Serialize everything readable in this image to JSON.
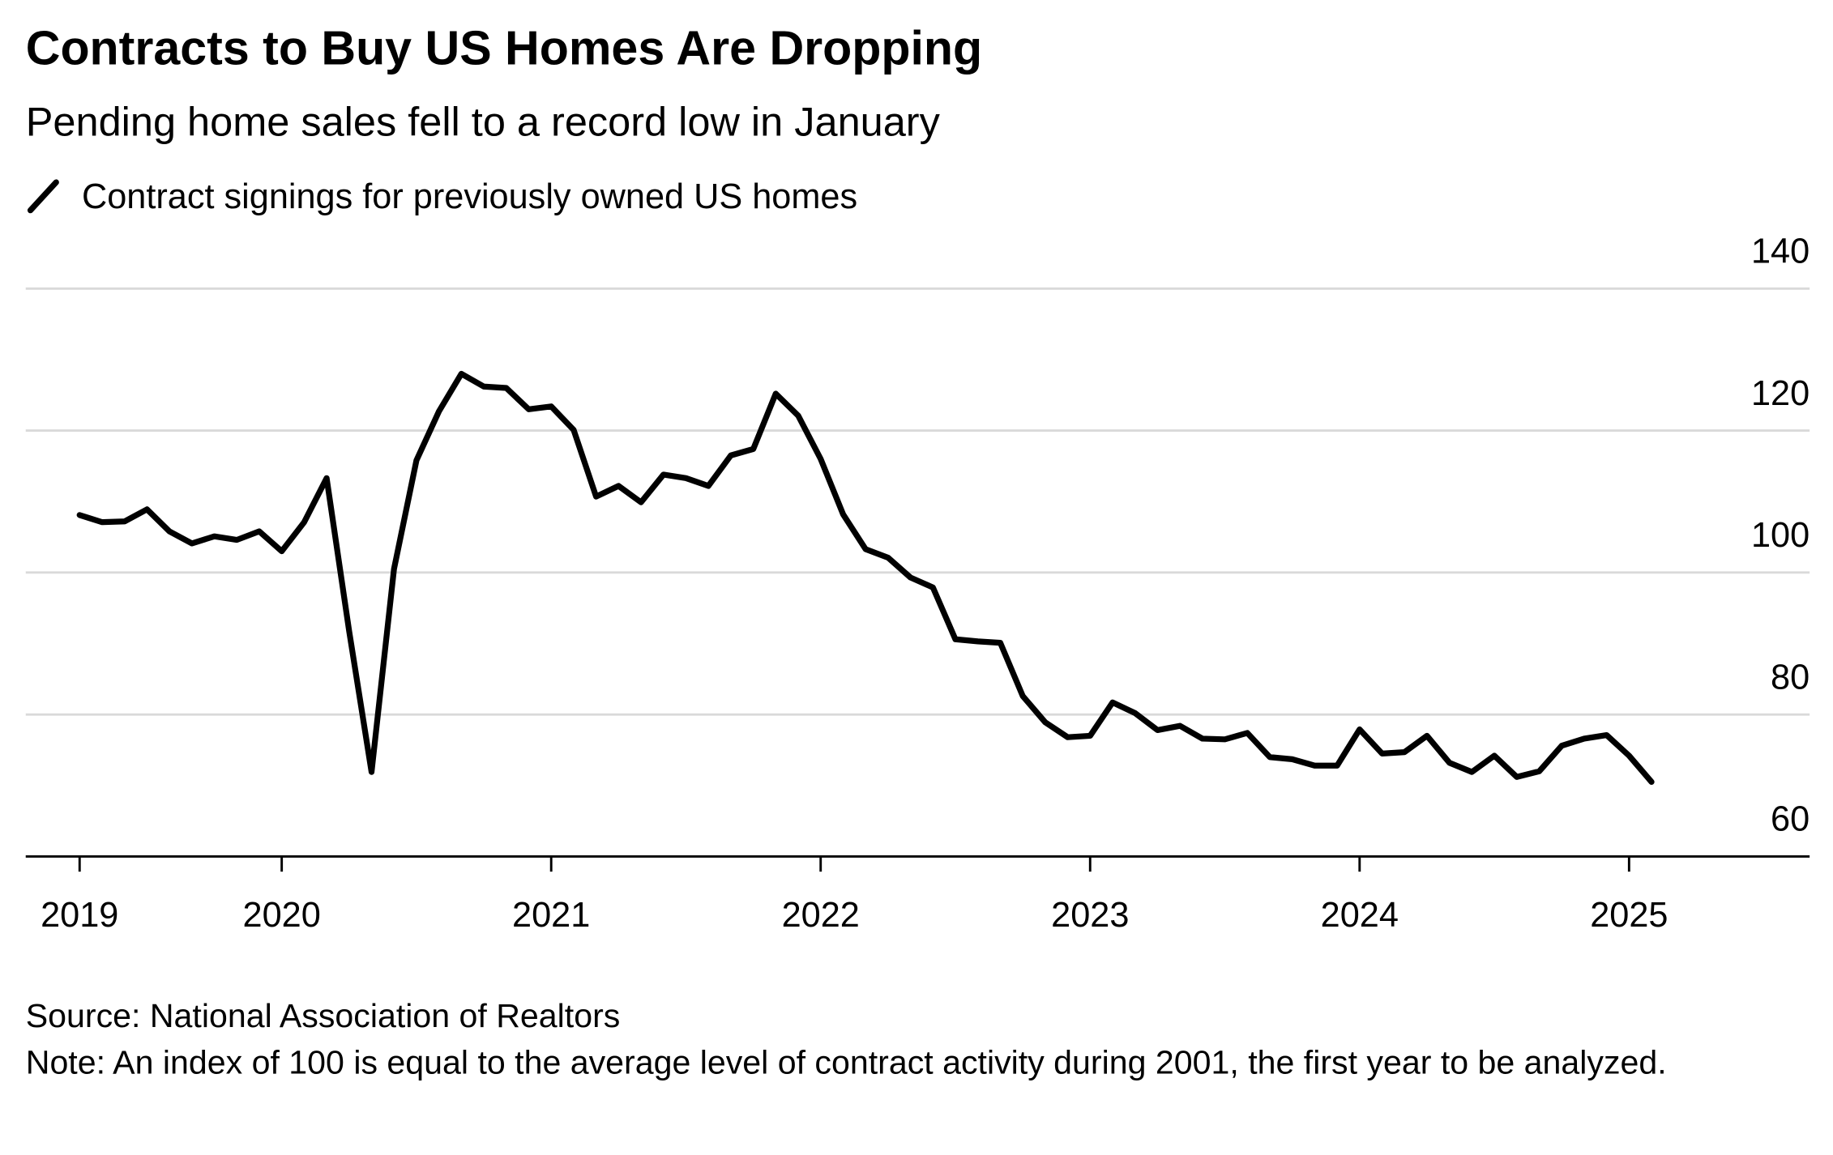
{
  "chart_data": {
    "type": "line",
    "title": "Contracts to Buy US Homes Are Dropping",
    "subtitle": "Pending home sales fell to a record low in January",
    "source": "Source: National Association of Realtors",
    "note": "Note: An index of 100 is equal to the average level of contract activity during 2001, the first year to be analyzed.",
    "x": [
      "2019-03",
      "2019-04",
      "2019-05",
      "2019-06",
      "2019-07",
      "2019-08",
      "2019-09",
      "2019-10",
      "2019-11",
      "2019-12",
      "2020-01",
      "2020-02",
      "2020-03",
      "2020-04",
      "2020-05",
      "2020-06",
      "2020-07",
      "2020-08",
      "2020-09",
      "2020-10",
      "2020-11",
      "2020-12",
      "2021-01",
      "2021-02",
      "2021-03",
      "2021-04",
      "2021-05",
      "2021-06",
      "2021-07",
      "2021-08",
      "2021-09",
      "2021-10",
      "2021-11",
      "2021-12",
      "2022-01",
      "2022-02",
      "2022-03",
      "2022-04",
      "2022-05",
      "2022-06",
      "2022-07",
      "2022-08",
      "2022-09",
      "2022-10",
      "2022-11",
      "2022-12",
      "2023-01",
      "2023-02",
      "2023-03",
      "2023-04",
      "2023-05",
      "2023-06",
      "2023-07",
      "2023-08",
      "2023-09",
      "2023-10",
      "2023-11",
      "2023-12",
      "2024-01",
      "2024-02",
      "2024-03",
      "2024-04",
      "2024-05",
      "2024-06",
      "2024-07",
      "2024-08",
      "2024-09",
      "2024-10",
      "2024-11",
      "2024-12",
      "2025-01"
    ],
    "series": [
      {
        "name": "Contract signings for previously owned US homes",
        "color": "#000000",
        "values": [
          108.1,
          107.1,
          107.2,
          108.9,
          105.8,
          104.1,
          105.1,
          104.6,
          105.8,
          103.0,
          107.1,
          113.3,
          91.8,
          71.9,
          100.5,
          115.8,
          122.7,
          128.0,
          126.2,
          126.0,
          123.0,
          123.4,
          120.1,
          110.7,
          112.2,
          109.9,
          113.8,
          113.3,
          112.2,
          116.5,
          117.4,
          125.2,
          122.1,
          116.0,
          108.2,
          103.3,
          102.1,
          99.3,
          97.9,
          90.6,
          90.3,
          90.1,
          82.6,
          78.9,
          76.8,
          77.0,
          81.7,
          80.2,
          77.8,
          78.4,
          76.6,
          76.5,
          77.4,
          74.0,
          73.7,
          72.8,
          72.8,
          77.9,
          74.5,
          74.7,
          77.0,
          73.2,
          71.9,
          74.2,
          71.2,
          72.0,
          75.6,
          76.6,
          77.1,
          74.2,
          70.5
        ]
      }
    ],
    "xlim": [
      2019.05,
      2025.67
    ],
    "xticks": [
      {
        "value": 2019.25,
        "label": "2019"
      },
      2020,
      2021,
      2022,
      2023,
      2024,
      2025
    ],
    "ylim": [
      60,
      140
    ],
    "yticks": [
      60,
      80,
      100,
      120,
      140
    ],
    "grid": true
  }
}
